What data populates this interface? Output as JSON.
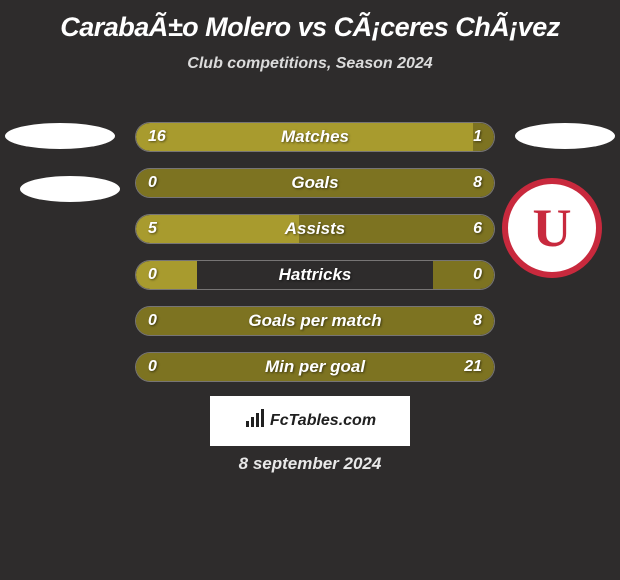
{
  "title": "CarabaÃ±o Molero vs CÃ¡ceres ChÃ¡vez",
  "subtitle": "Club competitions, Season 2024",
  "date": "8 september 2024",
  "watermark_text": "FcTables.com",
  "club_logo_letter": "U",
  "colors": {
    "bg": "#2e2c2c",
    "left_bar": "#a89b2e",
    "right_bar": "#7d7321",
    "white": "#ffffff",
    "logo_ring": "#c8293d"
  },
  "bars": [
    {
      "label": "Matches",
      "left_val": "16",
      "right_val": "1",
      "left_pct": 94.1,
      "right_pct": 5.9
    },
    {
      "label": "Goals",
      "left_val": "0",
      "right_val": "8",
      "left_pct": 17.0,
      "right_pct": 100.0
    },
    {
      "label": "Assists",
      "left_val": "5",
      "right_val": "6",
      "left_pct": 45.5,
      "right_pct": 54.5
    },
    {
      "label": "Hattricks",
      "left_val": "0",
      "right_val": "0",
      "left_pct": 17.0,
      "right_pct": 17.0
    },
    {
      "label": "Goals per match",
      "left_val": "0",
      "right_val": "8",
      "left_pct": 17.0,
      "right_pct": 100.0
    },
    {
      "label": "Min per goal",
      "left_val": "0",
      "right_val": "21",
      "left_pct": 17.0,
      "right_pct": 100.0
    }
  ]
}
